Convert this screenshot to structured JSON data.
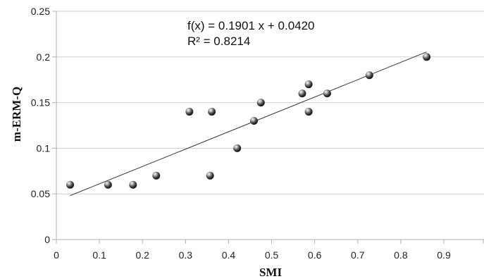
{
  "chart_data": {
    "type": "scatter",
    "xlabel": "SMI",
    "ylabel": "m-ERM-Q",
    "xlim": [
      0,
      0.9
    ],
    "ylim": [
      0,
      0.25
    ],
    "x_ticks": [
      "0",
      "0.1",
      "0.2",
      "0.3",
      "0.4",
      "0.5",
      "0.6",
      "0.7",
      "0.8",
      "0.9"
    ],
    "y_ticks": [
      "0",
      "0.05",
      "0.1",
      "0.15",
      "0.2",
      "0.25"
    ],
    "grid": "horizontal",
    "points": [
      {
        "x": 0.032,
        "y": 0.06
      },
      {
        "x": 0.12,
        "y": 0.06
      },
      {
        "x": 0.178,
        "y": 0.06
      },
      {
        "x": 0.232,
        "y": 0.07
      },
      {
        "x": 0.309,
        "y": 0.14
      },
      {
        "x": 0.357,
        "y": 0.07
      },
      {
        "x": 0.361,
        "y": 0.14
      },
      {
        "x": 0.42,
        "y": 0.1
      },
      {
        "x": 0.459,
        "y": 0.13
      },
      {
        "x": 0.475,
        "y": 0.15
      },
      {
        "x": 0.571,
        "y": 0.16
      },
      {
        "x": 0.586,
        "y": 0.17
      },
      {
        "x": 0.586,
        "y": 0.14
      },
      {
        "x": 0.629,
        "y": 0.16
      },
      {
        "x": 0.727,
        "y": 0.18
      },
      {
        "x": 0.86,
        "y": 0.2
      }
    ],
    "trendline": {
      "slope": 0.1901,
      "intercept": 0.042,
      "x_range": [
        0.032,
        0.86
      ],
      "equation": "f(x) = 0.1901 x + 0.0420",
      "r_squared": "R² = 0.8214"
    }
  }
}
